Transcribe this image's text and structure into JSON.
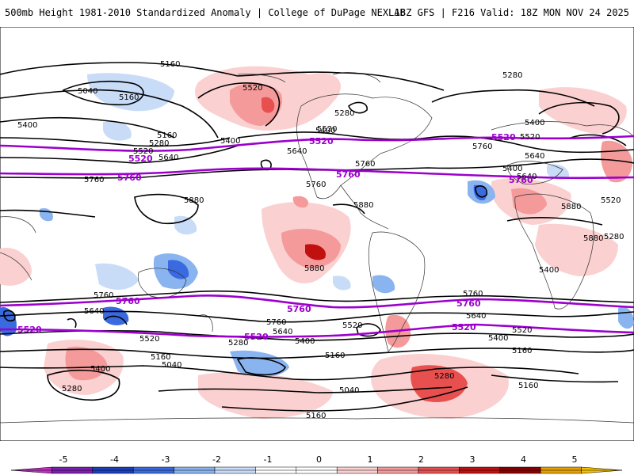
{
  "header": {
    "title_left": "500mb Height 1981-2010 Standardized Anomaly | College of DuPage NEXLAB",
    "title_right": "18Z GFS | F216 Valid: 18Z MON NOV 24 2025"
  },
  "contour_labels": {
    "l5160a": "5160",
    "l5040a": "5040",
    "l5520a": "5520",
    "l5400a": "5400",
    "l5160b": "5160",
    "l5400b": "5400",
    "l5280a": "5280",
    "l5520b": "5520",
    "l5640a": "5640",
    "l5760a": "5760",
    "l5880a": "5880",
    "l5280b": "5280",
    "l5400c": "5400",
    "l5640b": "5640",
    "l5760b": "5760",
    "l5880b": "5880",
    "l5280c": "5280",
    "l5400d": "5400",
    "l5520c": "5520",
    "l5640c": "5640",
    "l5760c": "5760",
    "l5880c": "5880",
    "l5880d": "5880",
    "l5880e": "5880",
    "l5760d": "5760",
    "l5640d": "5640",
    "l5760e": "5760",
    "l5640e": "5640",
    "l5520d": "5520",
    "l5520e": "5520",
    "l5400e": "5400",
    "l5280d": "5280",
    "l5160c": "5160",
    "l5040b": "5040",
    "l5400f": "5400",
    "l5280e": "5280",
    "l5640f": "5640",
    "l5520f": "5520",
    "l5280f": "5280",
    "l5400g": "5400",
    "l5520g": "5520",
    "l5400h": "5400",
    "l5160d": "5160",
    "l5040c": "5040",
    "l5160e": "5160",
    "l5280g": "5280",
    "l5160f": "5160",
    "l5760f": "5760",
    "l5640g": "5640",
    "l5520h": "5520",
    "l5400i": "5400",
    "l5160g": "5160",
    "l5160h": "5160",
    "l5760g": "5760"
  },
  "purple_labels": {
    "p5520a": "5520",
    "p5760a": "5760",
    "p5520b": "5520",
    "p5760b": "5760",
    "p5520c": "5520",
    "p5760c": "5760",
    "p5760d": "5760",
    "p5520d": "5520",
    "p5760e": "5760",
    "p5520e": "5520",
    "p5520f": "5520",
    "p5760f": "5760"
  },
  "colorbar": {
    "ticks": [
      "-5",
      "-4",
      "-3",
      "-2",
      "-1",
      "0",
      "1",
      "2",
      "3",
      "4",
      "5"
    ],
    "colors": [
      "#c030c0",
      "#7a1fb0",
      "#1a3fbf",
      "#3a6ae0",
      "#8ab4ef",
      "#c8dcf8",
      "#ffffff",
      "#ffffff",
      "#fbd0d0",
      "#f59a9a",
      "#e85050",
      "#c01010",
      "#8a0000",
      "#e8a000",
      "#f5c000"
    ]
  }
}
